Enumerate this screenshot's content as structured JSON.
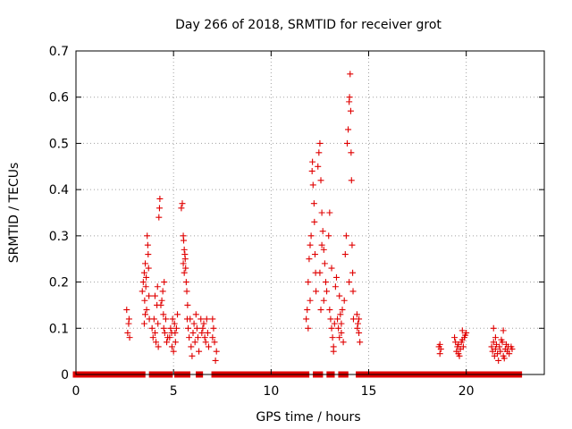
{
  "chart_data": {
    "type": "scatter",
    "title": "Day 266 of 2018, SRMTID for receiver grot",
    "xlabel": "GPS time / hours",
    "ylabel": "SRMTID / TECUs",
    "xlim": [
      0,
      24
    ],
    "ylim": [
      0,
      0.7
    ],
    "xticks": [
      0,
      5,
      10,
      15,
      20
    ],
    "xtick_labels": [
      "0",
      "5",
      "10",
      "15",
      "20"
    ],
    "yticks": [
      0,
      0.1,
      0.2,
      0.3,
      0.4,
      0.5,
      0.6,
      0.7
    ],
    "ytick_labels": [
      "0",
      "0.1",
      "0.2",
      "0.3",
      "0.4",
      "0.5",
      "0.6",
      "0.7"
    ],
    "grid": true,
    "marker": "+",
    "marker_color": "#e00000",
    "baseline_value": 0,
    "zero_intervals": [
      [
        0.0,
        3.4
      ],
      [
        3.9,
        4.1
      ],
      [
        4.4,
        4.5
      ],
      [
        4.7,
        4.8
      ],
      [
        5.2,
        5.4
      ],
      [
        5.6,
        5.7
      ],
      [
        6.3,
        6.35
      ],
      [
        7.1,
        11.8
      ],
      [
        12.3,
        12.5
      ],
      [
        13.0,
        13.1
      ],
      [
        13.6,
        13.8
      ],
      [
        14.5,
        19.8
      ],
      [
        20.0,
        22.7
      ]
    ],
    "series": [
      {
        "name": "SRMTID",
        "points": [
          [
            2.6,
            0.14
          ],
          [
            2.65,
            0.09
          ],
          [
            2.7,
            0.11
          ],
          [
            2.75,
            0.08
          ],
          [
            2.72,
            0.12
          ],
          [
            3.4,
            0.18
          ],
          [
            3.45,
            0.2
          ],
          [
            3.5,
            0.22
          ],
          [
            3.52,
            0.16
          ],
          [
            3.55,
            0.24
          ],
          [
            3.58,
            0.19
          ],
          [
            3.6,
            0.21
          ],
          [
            3.62,
            0.14
          ],
          [
            3.65,
            0.3
          ],
          [
            3.68,
            0.28
          ],
          [
            3.7,
            0.26
          ],
          [
            3.72,
            0.23
          ],
          [
            3.74,
            0.17
          ],
          [
            3.76,
            0.12
          ],
          [
            3.55,
            0.13
          ],
          [
            3.5,
            0.11
          ],
          [
            3.9,
            0.1
          ],
          [
            3.95,
            0.08
          ],
          [
            4.0,
            0.12
          ],
          [
            4.05,
            0.09
          ],
          [
            4.1,
            0.07
          ],
          [
            4.15,
            0.15
          ],
          [
            4.2,
            0.11
          ],
          [
            4.25,
            0.34
          ],
          [
            4.28,
            0.36
          ],
          [
            4.3,
            0.38
          ],
          [
            4.18,
            0.19
          ],
          [
            4.22,
            0.06
          ],
          [
            4.05,
            0.17
          ],
          [
            4.35,
            0.15
          ],
          [
            4.4,
            0.16
          ],
          [
            4.45,
            0.18
          ],
          [
            4.5,
            0.1
          ],
          [
            4.55,
            0.09
          ],
          [
            4.6,
            0.12
          ],
          [
            4.65,
            0.07
          ],
          [
            4.7,
            0.08
          ],
          [
            4.48,
            0.13
          ],
          [
            4.52,
            0.2
          ],
          [
            4.8,
            0.08
          ],
          [
            4.85,
            0.1
          ],
          [
            4.9,
            0.09
          ],
          [
            4.95,
            0.12
          ],
          [
            5.0,
            0.05
          ],
          [
            5.05,
            0.11
          ],
          [
            5.1,
            0.07
          ],
          [
            5.15,
            0.1
          ],
          [
            5.2,
            0.13
          ],
          [
            5.08,
            0.09
          ],
          [
            4.92,
            0.06
          ],
          [
            5.4,
            0.36
          ],
          [
            5.45,
            0.37
          ],
          [
            5.5,
            0.3
          ],
          [
            5.52,
            0.29
          ],
          [
            5.55,
            0.27
          ],
          [
            5.58,
            0.26
          ],
          [
            5.6,
            0.25
          ],
          [
            5.62,
            0.23
          ],
          [
            5.65,
            0.2
          ],
          [
            5.68,
            0.18
          ],
          [
            5.7,
            0.12
          ],
          [
            5.72,
            0.15
          ],
          [
            5.5,
            0.24
          ],
          [
            5.55,
            0.22
          ],
          [
            5.75,
            0.1
          ],
          [
            5.8,
            0.08
          ],
          [
            5.85,
            0.12
          ],
          [
            5.9,
            0.06
          ],
          [
            5.95,
            0.04
          ],
          [
            6.0,
            0.09
          ],
          [
            6.05,
            0.11
          ],
          [
            6.1,
            0.07
          ],
          [
            6.15,
            0.13
          ],
          [
            6.2,
            0.1
          ],
          [
            6.25,
            0.08
          ],
          [
            6.3,
            0.05
          ],
          [
            6.4,
            0.12
          ],
          [
            6.45,
            0.09
          ],
          [
            6.5,
            0.1
          ],
          [
            6.55,
            0.11
          ],
          [
            6.6,
            0.08
          ],
          [
            6.65,
            0.07
          ],
          [
            6.7,
            0.12
          ],
          [
            6.75,
            0.09
          ],
          [
            6.8,
            0.06
          ],
          [
            7.0,
            0.12
          ],
          [
            7.05,
            0.1
          ],
          [
            7.1,
            0.07
          ],
          [
            7.15,
            0.03
          ],
          [
            7.2,
            0.05
          ],
          [
            7.0,
            0.08
          ],
          [
            11.8,
            0.12
          ],
          [
            11.85,
            0.14
          ],
          [
            11.9,
            0.2
          ],
          [
            11.95,
            0.25
          ],
          [
            12.0,
            0.28
          ],
          [
            12.05,
            0.3
          ],
          [
            12.1,
            0.44
          ],
          [
            12.12,
            0.46
          ],
          [
            12.15,
            0.41
          ],
          [
            12.2,
            0.37
          ],
          [
            12.22,
            0.33
          ],
          [
            12.25,
            0.26
          ],
          [
            12.28,
            0.22
          ],
          [
            12.3,
            0.18
          ],
          [
            12.0,
            0.16
          ],
          [
            11.9,
            0.1
          ],
          [
            12.4,
            0.45
          ],
          [
            12.45,
            0.48
          ],
          [
            12.5,
            0.5
          ],
          [
            12.55,
            0.42
          ],
          [
            12.6,
            0.35
          ],
          [
            12.65,
            0.31
          ],
          [
            12.7,
            0.27
          ],
          [
            12.75,
            0.24
          ],
          [
            12.8,
            0.2
          ],
          [
            12.85,
            0.18
          ],
          [
            12.5,
            0.22
          ],
          [
            12.6,
            0.28
          ],
          [
            12.7,
            0.16
          ],
          [
            12.55,
            0.14
          ],
          [
            13.0,
            0.14
          ],
          [
            13.05,
            0.12
          ],
          [
            13.1,
            0.1
          ],
          [
            13.15,
            0.08
          ],
          [
            13.2,
            0.06
          ],
          [
            13.25,
            0.11
          ],
          [
            13.3,
            0.19
          ],
          [
            13.35,
            0.21
          ],
          [
            13.1,
            0.23
          ],
          [
            13.0,
            0.35
          ],
          [
            12.95,
            0.3
          ],
          [
            13.2,
            0.05
          ],
          [
            13.4,
            0.12
          ],
          [
            13.45,
            0.1
          ],
          [
            13.5,
            0.08
          ],
          [
            13.55,
            0.13
          ],
          [
            13.6,
            0.11
          ],
          [
            13.65,
            0.14
          ],
          [
            13.7,
            0.07
          ],
          [
            13.75,
            0.16
          ],
          [
            13.5,
            0.17
          ],
          [
            13.6,
            0.09
          ],
          [
            13.8,
            0.26
          ],
          [
            13.85,
            0.3
          ],
          [
            13.9,
            0.5
          ],
          [
            13.95,
            0.53
          ],
          [
            14.0,
            0.59
          ],
          [
            14.02,
            0.6
          ],
          [
            14.05,
            0.65
          ],
          [
            14.08,
            0.57
          ],
          [
            14.1,
            0.48
          ],
          [
            14.12,
            0.42
          ],
          [
            14.15,
            0.28
          ],
          [
            14.18,
            0.22
          ],
          [
            14.2,
            0.18
          ],
          [
            14.22,
            0.12
          ],
          [
            14.0,
            0.2
          ],
          [
            14.4,
            0.13
          ],
          [
            14.45,
            0.11
          ],
          [
            14.5,
            0.09
          ],
          [
            14.55,
            0.07
          ],
          [
            14.5,
            0.12
          ],
          [
            14.42,
            0.1
          ],
          [
            18.6,
            0.06
          ],
          [
            18.65,
            0.065
          ],
          [
            18.7,
            0.055
          ],
          [
            18.65,
            0.045
          ],
          [
            19.4,
            0.08
          ],
          [
            19.45,
            0.07
          ],
          [
            19.5,
            0.05
          ],
          [
            19.55,
            0.06
          ],
          [
            19.6,
            0.045
          ],
          [
            19.65,
            0.04
          ],
          [
            19.7,
            0.055
          ],
          [
            19.75,
            0.07
          ],
          [
            19.8,
            0.075
          ],
          [
            19.85,
            0.06
          ],
          [
            19.9,
            0.08
          ],
          [
            19.95,
            0.085
          ],
          [
            20.0,
            0.09
          ],
          [
            19.6,
            0.065
          ],
          [
            19.8,
            0.095
          ],
          [
            21.3,
            0.06
          ],
          [
            21.35,
            0.05
          ],
          [
            21.4,
            0.07
          ],
          [
            21.45,
            0.04
          ],
          [
            21.5,
            0.055
          ],
          [
            21.55,
            0.065
          ],
          [
            21.6,
            0.045
          ],
          [
            21.65,
            0.03
          ],
          [
            21.7,
            0.06
          ],
          [
            21.75,
            0.05
          ],
          [
            21.8,
            0.075
          ],
          [
            21.85,
            0.07
          ],
          [
            21.9,
            0.04
          ],
          [
            21.95,
            0.035
          ],
          [
            22.0,
            0.055
          ],
          [
            22.05,
            0.065
          ],
          [
            22.1,
            0.05
          ],
          [
            22.15,
            0.06
          ],
          [
            22.2,
            0.045
          ],
          [
            22.3,
            0.06
          ],
          [
            22.35,
            0.055
          ],
          [
            21.4,
            0.1
          ],
          [
            21.9,
            0.095
          ],
          [
            21.5,
            0.08
          ]
        ]
      }
    ]
  }
}
